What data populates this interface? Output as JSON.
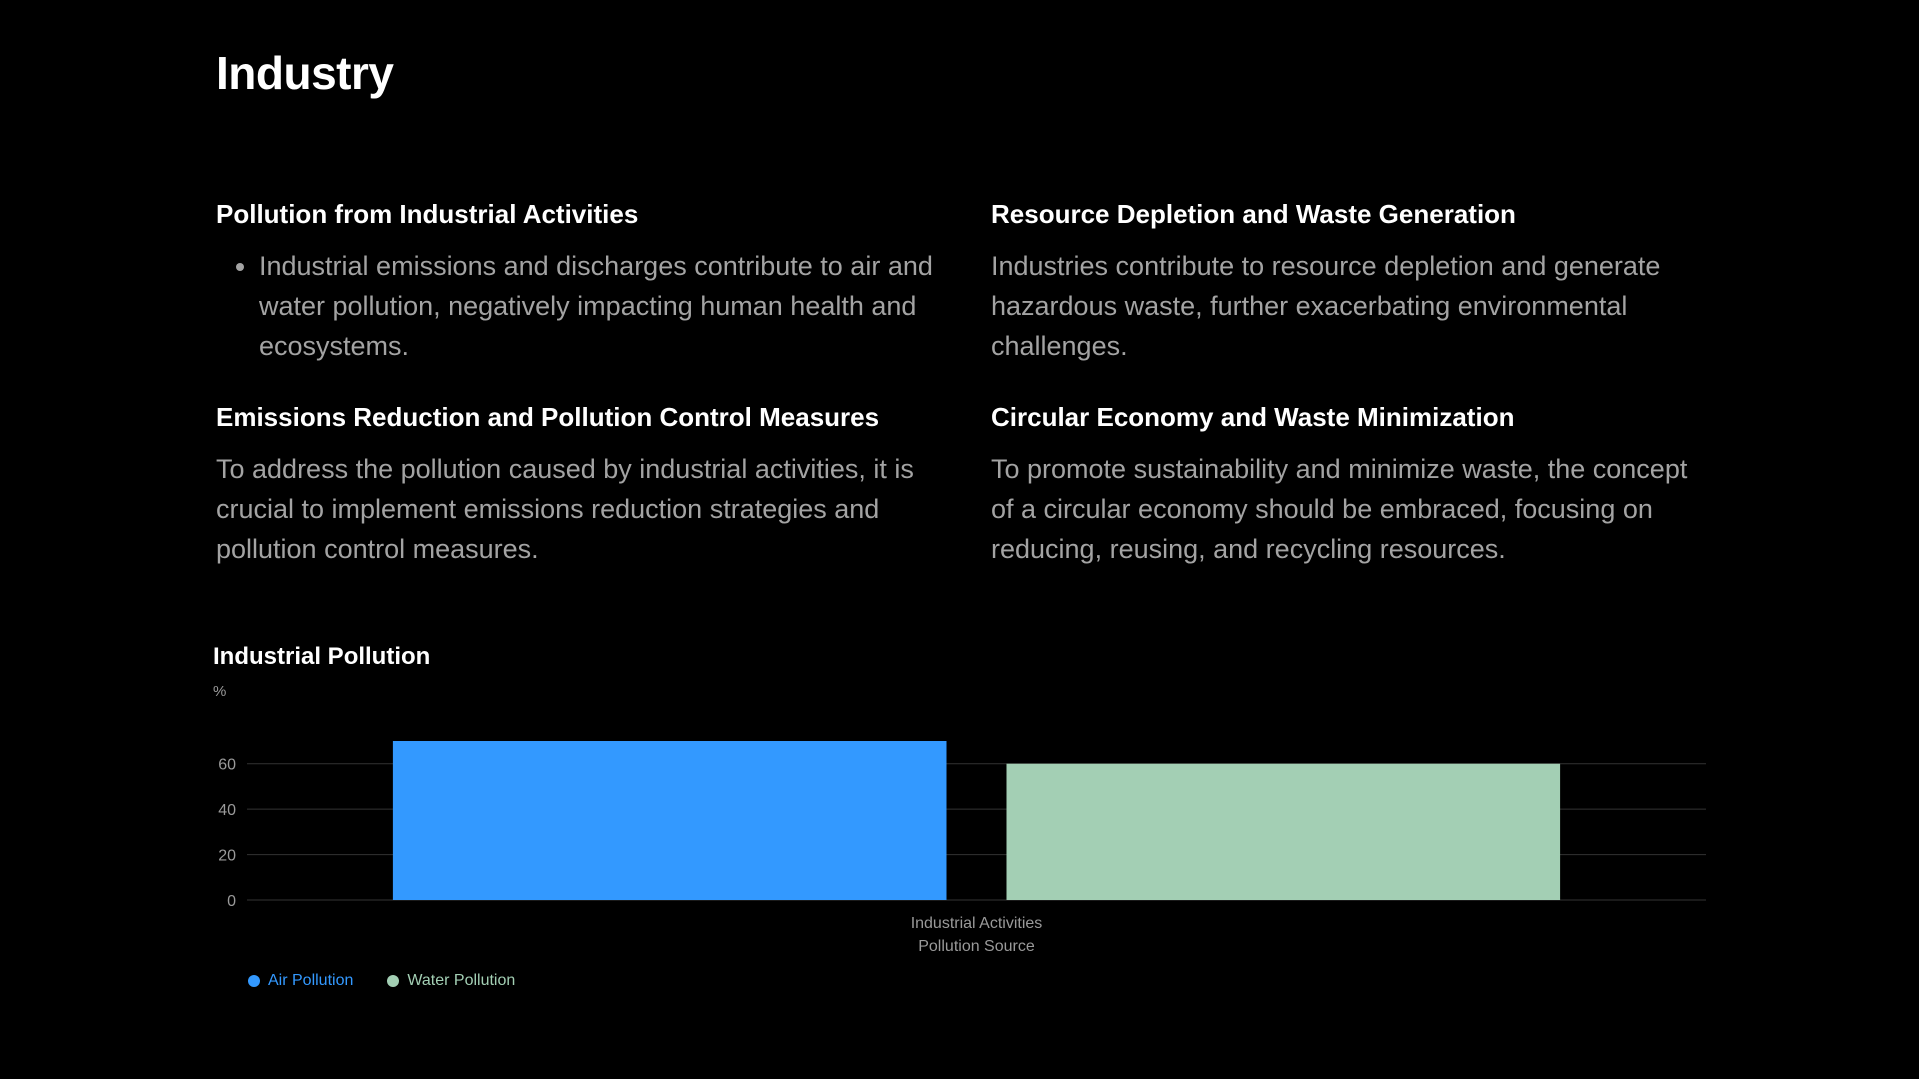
{
  "page": {
    "title": "Industry"
  },
  "sections": [
    {
      "heading": "Pollution from Industrial Activities",
      "bullets": [
        "Industrial emissions and discharges contribute to air and water pollution, negatively impacting human health and ecosystems."
      ]
    },
    {
      "heading": "Resource Depletion and Waste Generation",
      "body": "Industries contribute to resource depletion and generate hazardous waste, further exacerbating environmental challenges."
    },
    {
      "heading": "Emissions Reduction and Pollution Control Measures",
      "body": "To address the pollution caused by industrial activities, it is crucial to implement emissions reduction strategies and pollution control measures."
    },
    {
      "heading": "Circular Economy and Waste Minimization",
      "body": "To promote sustainability and minimize waste, the concept of a circular economy should be embraced, focusing on reducing, reusing, and recycling resources."
    }
  ],
  "chart_data": {
    "type": "bar",
    "title": "Industrial Pollution",
    "ylabel": "%",
    "xlabel": "Pollution Source",
    "categories": [
      "Industrial Activities"
    ],
    "series": [
      {
        "name": "Air Pollution",
        "values": [
          70
        ],
        "color": "#3399ff"
      },
      {
        "name": "Water Pollution",
        "values": [
          60
        ],
        "color": "#a3cfb4"
      }
    ],
    "ylim": [
      0,
      70
    ],
    "yticks": [
      0,
      20,
      40,
      60
    ],
    "grid": true,
    "legend_position": "bottom-left",
    "colors": {
      "axis_text": "#9a9a9a",
      "grid": "#333333"
    }
  }
}
